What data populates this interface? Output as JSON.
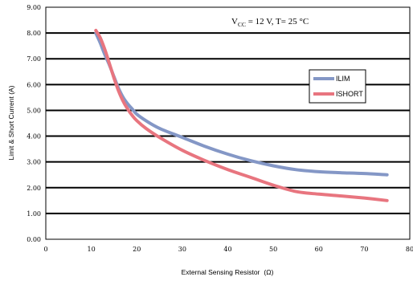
{
  "chart_data": {
    "type": "line",
    "xlabel": "External Sensing Resistor",
    "xlabel_unit": "(Ω)",
    "ylabel": "Limit & Short Current (A)",
    "xlim": [
      0,
      80
    ],
    "ylim": [
      0,
      9
    ],
    "xticks": [
      "0",
      "10",
      "20",
      "30",
      "40",
      "50",
      "60",
      "70",
      "80"
    ],
    "yticks": [
      "0.00",
      "1.00",
      "2.00",
      "3.00",
      "4.00",
      "5.00",
      "6.00",
      "7.00",
      "8.00",
      "9.00"
    ],
    "grid": "horizontal",
    "legend_position": "right",
    "annotation": {
      "vcc_symbol": "V",
      "vcc_subscript": "CC",
      "rest": " = 12 V, T= 25 °C"
    },
    "series": [
      {
        "name": "ILIM",
        "color": "#8497c6",
        "x": [
          11,
          12,
          13,
          14,
          15,
          16,
          17,
          18,
          19,
          20,
          22,
          25,
          30,
          35,
          40,
          45,
          50,
          55,
          60,
          65,
          70,
          75
        ],
        "y": [
          8.0,
          7.6,
          7.15,
          6.75,
          6.3,
          5.85,
          5.5,
          5.25,
          5.05,
          4.85,
          4.6,
          4.3,
          3.95,
          3.6,
          3.3,
          3.05,
          2.85,
          2.7,
          2.62,
          2.58,
          2.55,
          2.5
        ]
      },
      {
        "name": "ISHORT",
        "color": "#e8757f",
        "x": [
          11,
          12,
          13,
          14,
          15,
          16,
          17,
          18,
          19,
          20,
          22,
          25,
          30,
          35,
          40,
          45,
          50,
          55,
          60,
          65,
          70,
          75
        ],
        "y": [
          8.1,
          7.8,
          7.35,
          6.8,
          6.25,
          5.75,
          5.35,
          5.05,
          4.8,
          4.6,
          4.3,
          3.95,
          3.45,
          3.05,
          2.7,
          2.4,
          2.1,
          1.85,
          1.75,
          1.68,
          1.6,
          1.5
        ]
      }
    ]
  }
}
